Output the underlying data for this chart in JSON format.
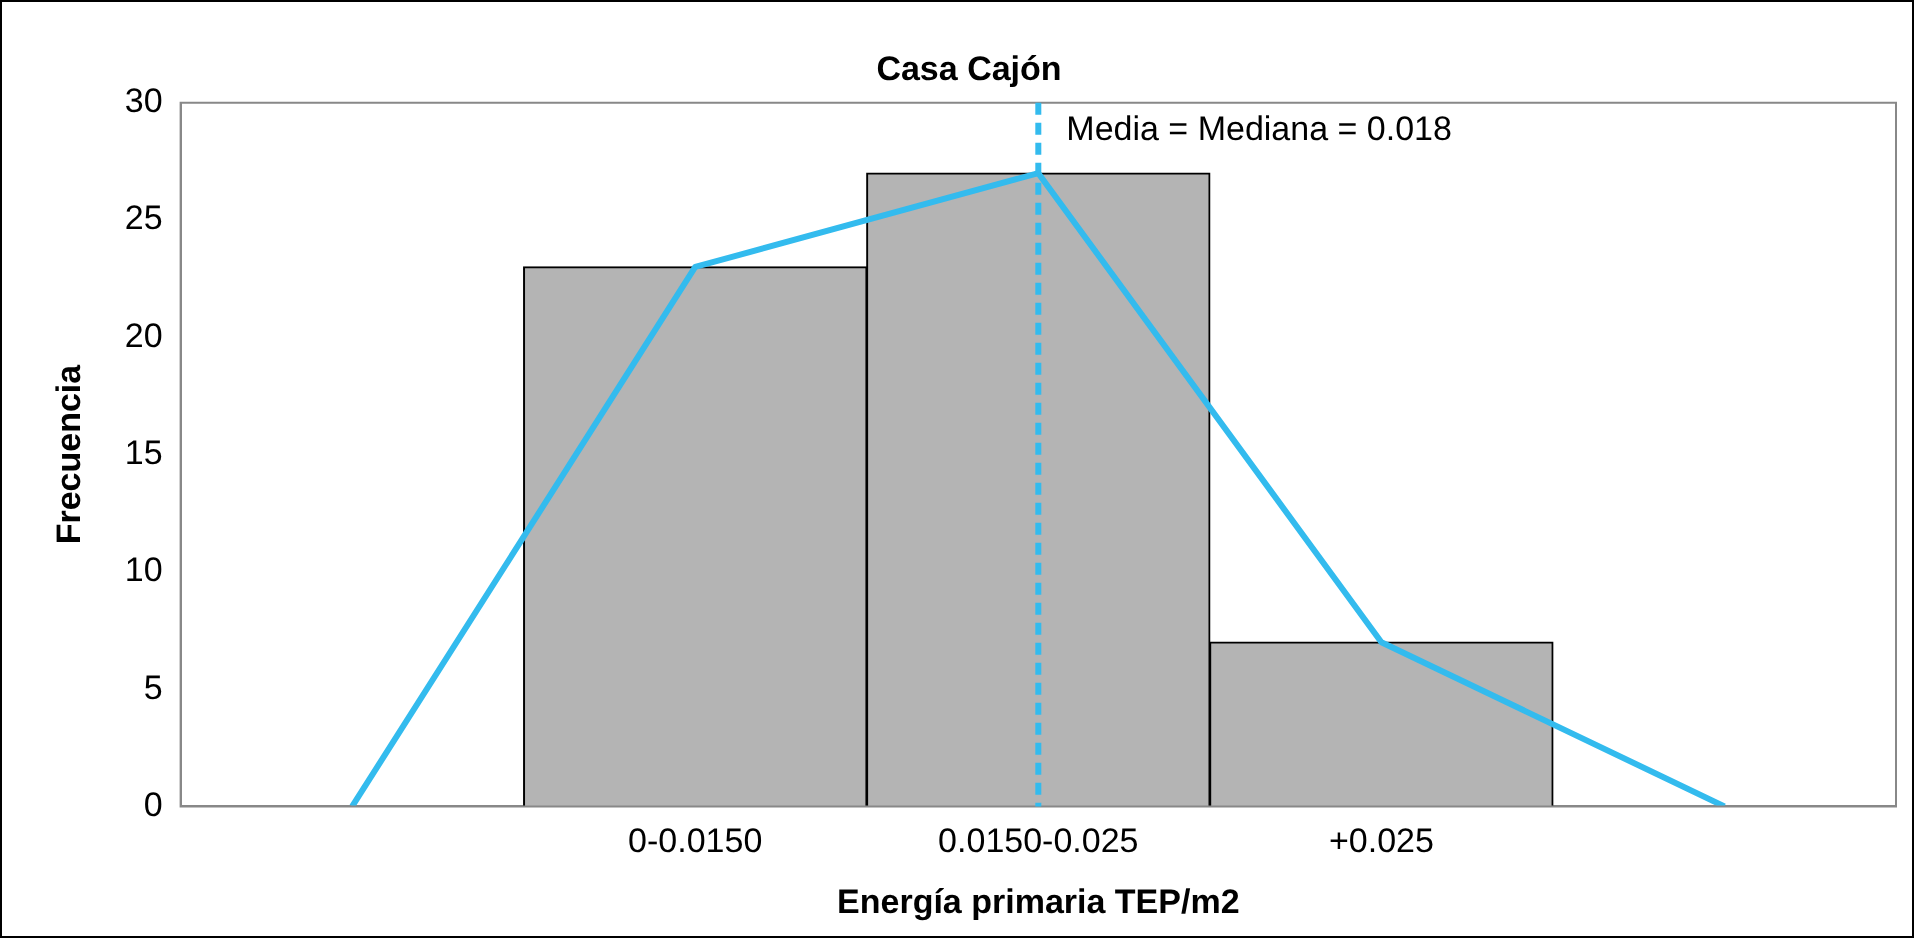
{
  "chart_data": {
    "type": "bar",
    "title": "Casa Cajón",
    "xlabel": "Energía primaria TEP/m2",
    "ylabel": "Frecuencia",
    "categories": [
      null,
      "0-0.0150",
      "0.0150-0.025",
      "+0.025",
      null
    ],
    "series": [
      {
        "color": "#b4b4b4",
        "values": [
          null,
          23,
          27,
          7,
          null
        ]
      },
      {
        "type": "line",
        "color": "#33bbee",
        "values": [
          0,
          23,
          27,
          7,
          0
        ]
      }
    ],
    "ylim": [
      0,
      30
    ],
    "yticks": [
      0,
      5,
      10,
      15,
      20,
      25,
      30
    ],
    "grid": false,
    "legend": false,
    "marker": "none",
    "line_style": "solid",
    "ref_lines": [
      {
        "axis": "x",
        "value": "0.0150-0.025",
        "label": "Media = Mediana = 0.018",
        "color": "#33bbee",
        "line_style": "dashed"
      }
    ]
  }
}
